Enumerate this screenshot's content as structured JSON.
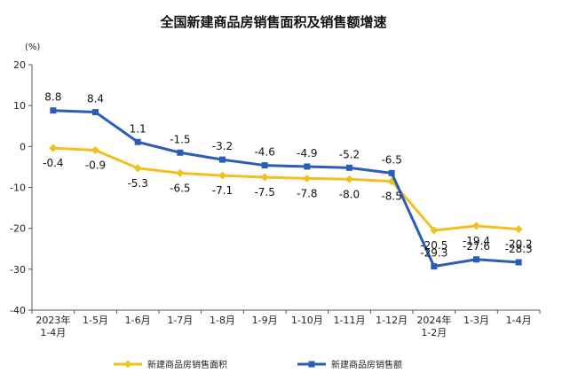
{
  "chart_data": {
    "type": "line",
    "title": "全国新建商品房销售面积及销售额增速",
    "unit_label": "(%)",
    "ylim": [
      -40,
      20
    ],
    "yticks": [
      20,
      10,
      0,
      -10,
      -20,
      -30,
      -40
    ],
    "categories": [
      "2023年 1-4月",
      "1-5月",
      "1-6月",
      "1-7月",
      "1-8月",
      "1-9月",
      "1-10月",
      "1-11月",
      "1-12月",
      "2024年 1-2月",
      "1-3月",
      "1-4月"
    ],
    "category_lines": [
      [
        "2023年",
        "1-4月"
      ],
      [
        "1-5月"
      ],
      [
        "1-6月"
      ],
      [
        "1-7月"
      ],
      [
        "1-8月"
      ],
      [
        "1-9月"
      ],
      [
        "1-10月"
      ],
      [
        "1-11月"
      ],
      [
        "1-12月"
      ],
      [
        "2024年",
        "1-2月"
      ],
      [
        "1-3月"
      ],
      [
        "1-4月"
      ]
    ],
    "series": [
      {
        "name": "新建商品房销售面积",
        "color": "#f2c01e",
        "marker": "diamond",
        "label_position": "below",
        "values": [
          -0.4,
          -0.9,
          -5.3,
          -6.5,
          -7.1,
          -7.5,
          -7.8,
          -8.0,
          -8.5,
          -20.5,
          -19.4,
          -20.2
        ],
        "labels": [
          "-0.4",
          "-0.9",
          "-5.3",
          "-6.5",
          "-7.1",
          "-7.5",
          "-7.8",
          "-8.0",
          "-8.5",
          "-20.5",
          "-19.4",
          "-20.2"
        ]
      },
      {
        "name": "新建商品房销售额",
        "color": "#2a5db5",
        "marker": "square",
        "label_position": "above",
        "values": [
          8.8,
          8.4,
          1.1,
          -1.5,
          -3.2,
          -4.6,
          -4.9,
          -5.2,
          -6.5,
          -29.3,
          -27.6,
          -28.3
        ],
        "labels": [
          "8.8",
          "8.4",
          "1.1",
          "-1.5",
          "-3.2",
          "-4.6",
          "-4.9",
          "-5.2",
          "-6.5",
          "-29.3",
          "-27.6",
          "-28.3"
        ]
      }
    ],
    "legend": {
      "position": "bottom"
    },
    "grid": false
  }
}
